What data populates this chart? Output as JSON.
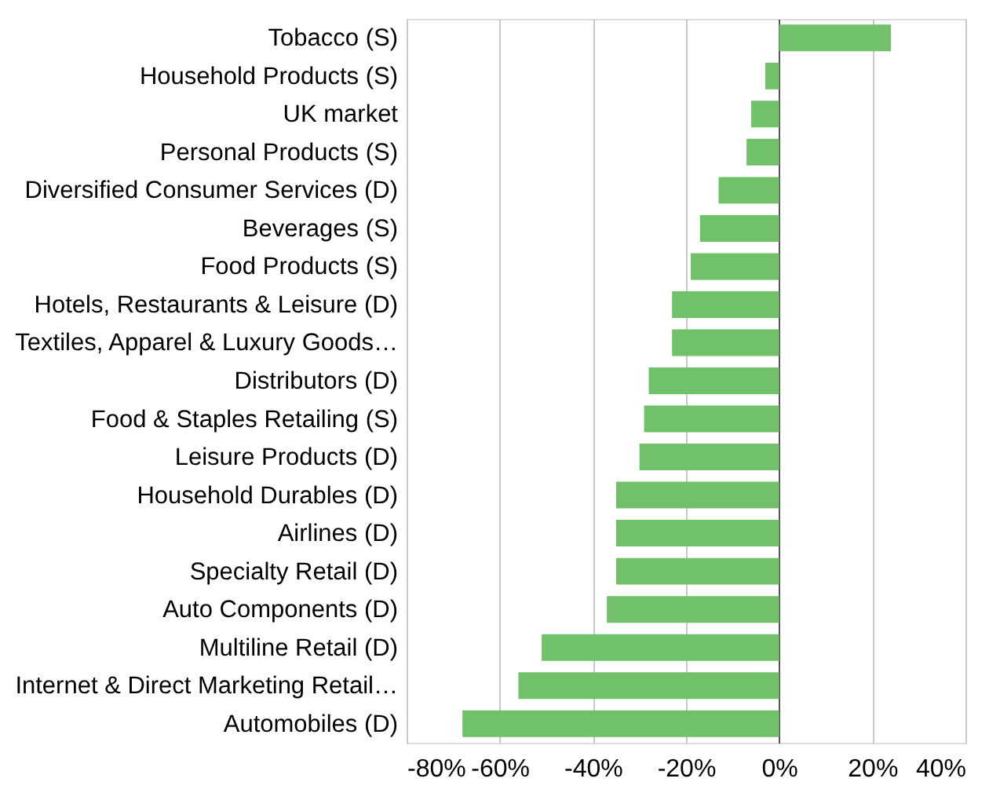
{
  "chart_data": {
    "type": "bar",
    "orientation": "horizontal",
    "categories": [
      "Tobacco (S)",
      "Household Products (S)",
      "UK market",
      "Personal Products (S)",
      "Diversified Consumer Services (D)",
      "Beverages (S)",
      "Food Products (S)",
      "Hotels, Restaurants & Leisure (D)",
      "Textiles, Apparel & Luxury Goods…",
      "Distributors (D)",
      "Food & Staples Retailing (S)",
      "Leisure Products (D)",
      "Household Durables (D)",
      "Airlines (D)",
      "Specialty Retail (D)",
      "Auto Components (D)",
      "Multiline Retail (D)",
      "Internet & Direct Marketing Retail…",
      "Automobiles (D)"
    ],
    "values": [
      24,
      -3,
      -6,
      -7,
      -13,
      -17,
      -19,
      -23,
      -23,
      -28,
      -29,
      -30,
      -35,
      -35,
      -35,
      -37,
      -51,
      -56,
      -68
    ],
    "color": "#70c16a",
    "xlim": [
      -80,
      40
    ],
    "xticks": [
      {
        "value": -80,
        "label": "-80%"
      },
      {
        "value": -60,
        "label": "-60%"
      },
      {
        "value": -40,
        "label": "-40%"
      },
      {
        "value": -20,
        "label": "-20%"
      },
      {
        "value": 0,
        "label": "0%"
      },
      {
        "value": 20,
        "label": "20%"
      },
      {
        "value": 40,
        "label": "40%"
      }
    ],
    "grid": "x"
  }
}
